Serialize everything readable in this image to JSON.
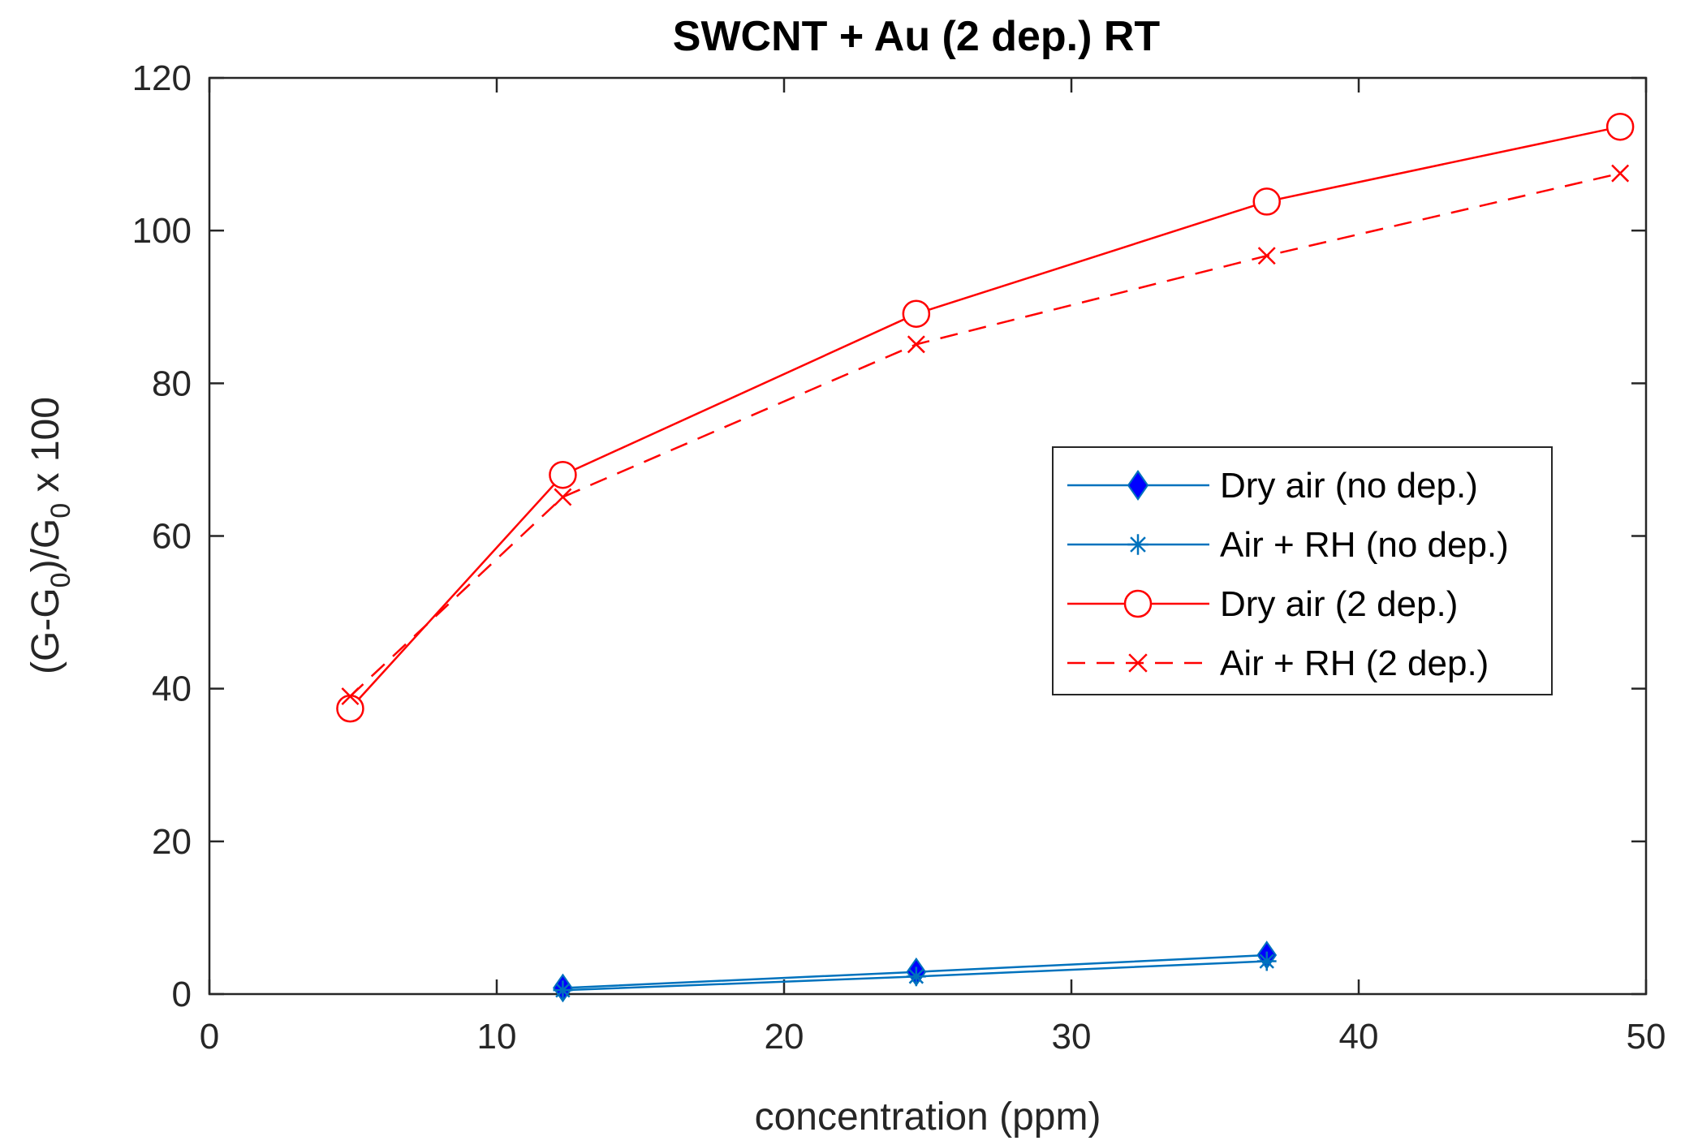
{
  "chart_data": {
    "type": "line",
    "title": "SWCNT + Au  (2 dep.)  RT",
    "xlabel": "concentration (ppm)",
    "ylabel": {
      "part1": "(G-G",
      "sub1": "0",
      "part2": ")/G",
      "sub2": "0",
      "part3": " x 100"
    },
    "xlim": [
      0,
      50
    ],
    "ylim": [
      0,
      120
    ],
    "xticks": [
      0,
      10,
      20,
      30,
      40,
      50
    ],
    "yticks": [
      0,
      20,
      40,
      60,
      80,
      100,
      120
    ],
    "grid": false,
    "legend_position": "right-center",
    "series": [
      {
        "name": "Dry air (no dep.)",
        "color": "#0072BD",
        "marker": "diamond",
        "dash": false,
        "x": [
          12.3,
          24.6,
          36.8
        ],
        "y": [
          0.8,
          2.9,
          5.1
        ]
      },
      {
        "name": "Air + RH (no dep.)",
        "color": "#0072BD",
        "marker": "asterisk",
        "dash": false,
        "x": [
          12.3,
          24.6,
          36.8
        ],
        "y": [
          0.5,
          2.3,
          4.3
        ]
      },
      {
        "name": "Dry air (2 dep.)",
        "color": "#FF0000",
        "marker": "circle",
        "dash": false,
        "x": [
          4.9,
          12.3,
          24.6,
          36.8,
          49.1
        ],
        "y": [
          37.4,
          68.0,
          89.1,
          103.8,
          113.6
        ]
      },
      {
        "name": "Air + RH (2 dep.)",
        "color": "#FF0000",
        "marker": "x",
        "dash": true,
        "x": [
          4.9,
          12.3,
          24.6,
          36.8,
          49.1
        ],
        "y": [
          39.0,
          65.1,
          85.1,
          96.7,
          107.5
        ]
      }
    ]
  }
}
